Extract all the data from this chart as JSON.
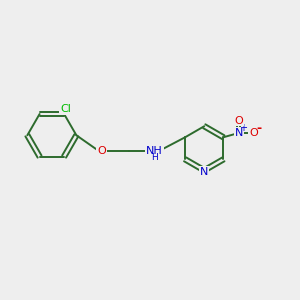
{
  "background_color": "#eeeeee",
  "bond_color": "#2d6b2d",
  "atom_colors": {
    "Cl": "#00bb00",
    "O": "#dd0000",
    "N_amine": "#0000cc",
    "N_pyridine": "#0000cc",
    "N_nitro": "#0000cc",
    "O_nitro": "#dd0000"
  },
  "figsize": [
    3.0,
    3.0
  ],
  "dpi": 100,
  "xlim": [
    0,
    12
  ],
  "ylim": [
    0,
    10
  ]
}
